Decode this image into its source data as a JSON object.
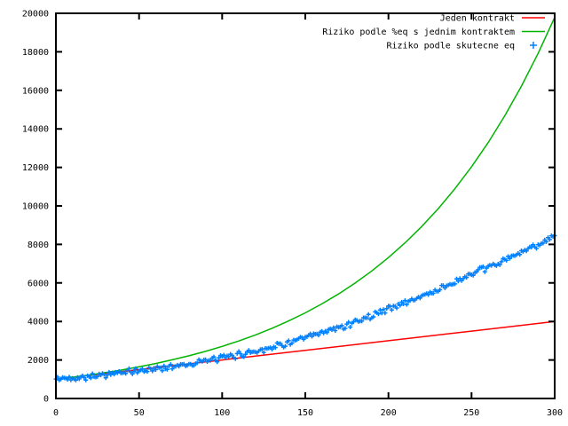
{
  "chart_data": {
    "type": "line",
    "title": "",
    "xlabel": "",
    "ylabel": "",
    "xlim": [
      0,
      300
    ],
    "ylim": [
      0,
      20000
    ],
    "xticks": [
      0,
      50,
      100,
      150,
      200,
      250,
      300
    ],
    "yticks": [
      0,
      2000,
      4000,
      6000,
      8000,
      10000,
      12000,
      14000,
      16000,
      18000,
      20000
    ],
    "grid": false,
    "legend_position": "top-right",
    "background_color": "#ffffff",
    "axis_color": "#000000",
    "series": [
      {
        "name": "Jeden kontrakt",
        "color": "#ff0000",
        "style": "line",
        "points": [
          [
            0,
            1000
          ],
          [
            50,
            1500
          ],
          [
            100,
            2000
          ],
          [
            150,
            2500
          ],
          [
            200,
            3000
          ],
          [
            250,
            3500
          ],
          [
            300,
            4000
          ]
        ]
      },
      {
        "name": "Riziko podle %eq s jednim kontraktem",
        "color": "#00b400",
        "style": "line",
        "points": [
          [
            0,
            1000
          ],
          [
            10,
            1105
          ],
          [
            20,
            1220
          ],
          [
            30,
            1348
          ],
          [
            40,
            1489
          ],
          [
            50,
            1645
          ],
          [
            60,
            1817
          ],
          [
            70,
            2007
          ],
          [
            80,
            2217
          ],
          [
            90,
            2449
          ],
          [
            100,
            2705
          ],
          [
            110,
            2988
          ],
          [
            120,
            3300
          ],
          [
            130,
            3646
          ],
          [
            140,
            4027
          ],
          [
            150,
            4448
          ],
          [
            160,
            4914
          ],
          [
            170,
            5428
          ],
          [
            180,
            5996
          ],
          [
            190,
            6623
          ],
          [
            200,
            7316
          ],
          [
            210,
            8081
          ],
          [
            220,
            8927
          ],
          [
            230,
            9861
          ],
          [
            240,
            10893
          ],
          [
            250,
            12032
          ],
          [
            260,
            13291
          ],
          [
            270,
            14682
          ],
          [
            280,
            16218
          ],
          [
            290,
            17915
          ],
          [
            300,
            19789
          ]
        ]
      },
      {
        "name": "Riziko podle skutecne eq",
        "color": "#0080ff",
        "style": "plus-markers",
        "marker": "+",
        "band_center_points": [
          [
            0,
            1000
          ],
          [
            25,
            1198
          ],
          [
            50,
            1435
          ],
          [
            75,
            1736
          ],
          [
            100,
            2100
          ],
          [
            125,
            2566
          ],
          [
            150,
            3135
          ],
          [
            175,
            3826
          ],
          [
            200,
            4670
          ],
          [
            225,
            5484
          ],
          [
            250,
            6440
          ],
          [
            275,
            7379
          ],
          [
            300,
            8455
          ]
        ],
        "marker_step_x": 1,
        "jitter_amplitude": 200
      }
    ]
  }
}
